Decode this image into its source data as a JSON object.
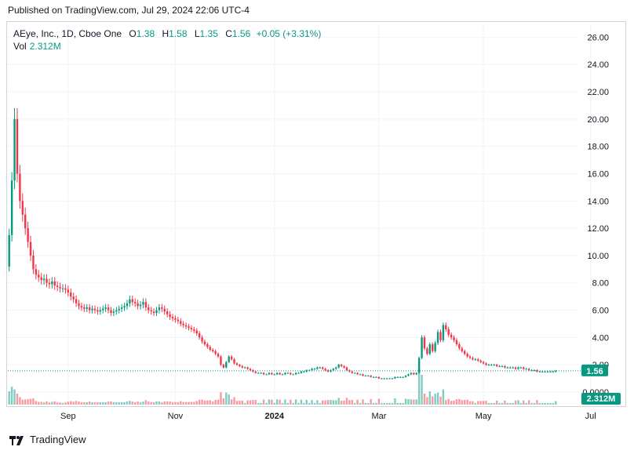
{
  "header": {
    "published": "Published on TradingView.com, Jul 29, 2024 22:06 UTC-4"
  },
  "legend": {
    "symbol": "AEye, Inc., 1D, Cboe One",
    "open_label": "O",
    "open": "1.38",
    "high_label": "H",
    "high": "1.58",
    "low_label": "L",
    "low": "1.35",
    "close_label": "C",
    "close": "1.56",
    "change": "+0.05 (+3.31%)",
    "volume_label": "Vol",
    "volume": "2.312M"
  },
  "footer": {
    "brand": "TradingView"
  },
  "colors": {
    "up": "#089981",
    "down": "#f23645",
    "grid": "#f0f3fa",
    "badge": "#089981"
  },
  "chart_data": {
    "type": "candlestick",
    "y_ticks": [
      "26.00",
      "24.00",
      "22.00",
      "20.00",
      "18.00",
      "16.00",
      "14.00",
      "12.00",
      "10.00",
      "8.00",
      "6.00",
      "4.00",
      "2.00",
      "0.0000"
    ],
    "y_tick_values": [
      26,
      24,
      22,
      20,
      18,
      16,
      14,
      12,
      10,
      8,
      6,
      4,
      2,
      0
    ],
    "ylim": [
      0,
      27
    ],
    "x_ticks": [
      "Sep",
      "Nov",
      "2024",
      "Mar",
      "May",
      "Jul"
    ],
    "x_tick_index": [
      22,
      62,
      99,
      138,
      177,
      217
    ],
    "last_price": "1.56",
    "last_volume": "2.312M",
    "close_series": [
      11.5,
      15.5,
      20.0,
      16.0,
      14.0,
      13.0,
      12.0,
      11.0,
      10.0,
      9.0,
      8.6,
      8.4,
      8.2,
      8.3,
      8.0,
      7.9,
      8.1,
      7.8,
      7.7,
      7.6,
      7.6,
      7.5,
      7.3,
      7.0,
      6.8,
      6.5,
      6.3,
      6.2,
      6.1,
      6.2,
      6.0,
      6.1,
      6.0,
      5.9,
      6.0,
      6.1,
      6.2,
      6.0,
      5.8,
      5.9,
      6.0,
      6.1,
      6.2,
      6.3,
      6.5,
      6.8,
      6.6,
      6.5,
      6.3,
      6.4,
      6.6,
      6.2,
      6.0,
      5.9,
      5.8,
      6.0,
      6.2,
      6.1,
      5.9,
      5.7,
      5.5,
      5.4,
      5.3,
      5.2,
      5.0,
      4.9,
      4.8,
      4.7,
      4.6,
      4.5,
      4.3,
      4.0,
      3.7,
      3.5,
      3.3,
      3.1,
      3.0,
      2.8,
      2.6,
      2.0,
      1.8,
      2.2,
      2.6,
      2.4,
      2.1,
      2.0,
      1.9,
      1.8,
      1.8,
      1.7,
      1.6,
      1.5,
      1.4,
      1.4,
      1.4,
      1.3,
      1.3,
      1.4,
      1.3,
      1.3,
      1.4,
      1.3,
      1.3,
      1.4,
      1.4,
      1.3,
      1.3,
      1.4,
      1.4,
      1.5,
      1.5,
      1.6,
      1.6,
      1.7,
      1.7,
      1.8,
      1.8,
      1.7,
      1.6,
      1.5,
      1.6,
      1.7,
      1.8,
      2.0,
      1.9,
      1.8,
      1.6,
      1.5,
      1.4,
      1.4,
      1.3,
      1.3,
      1.2,
      1.2,
      1.2,
      1.1,
      1.1,
      1.1,
      1.0,
      1.0,
      1.0,
      1.0,
      1.0,
      1.0,
      1.1,
      1.1,
      1.1,
      1.1,
      1.2,
      1.3,
      1.4,
      1.3,
      1.4,
      2.5,
      4.0,
      3.2,
      2.8,
      3.5,
      3.0,
      3.6,
      4.4,
      3.8,
      4.9,
      4.6,
      4.2,
      4.0,
      3.8,
      3.5,
      3.2,
      3.0,
      2.8,
      2.6,
      2.5,
      2.4,
      2.4,
      2.3,
      2.2,
      2.1,
      2.0,
      2.0,
      2.0,
      2.0,
      1.9,
      1.9,
      1.9,
      1.8,
      1.8,
      1.8,
      1.8,
      1.7,
      1.8,
      1.8,
      1.7,
      1.7,
      1.6,
      1.6,
      1.6,
      1.5,
      1.5,
      1.5,
      1.5,
      1.5,
      1.5,
      1.5,
      1.56
    ]
  }
}
